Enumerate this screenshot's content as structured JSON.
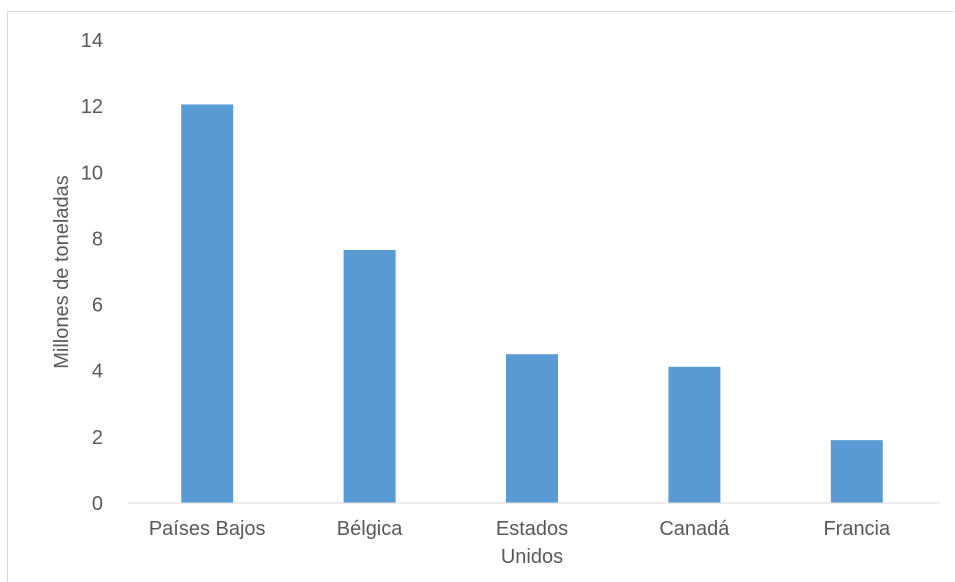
{
  "chart_data": {
    "type": "bar",
    "title": "",
    "xlabel": "",
    "ylabel": "Millones de toneladas",
    "categories": [
      [
        "Países Bajos"
      ],
      [
        "Bélgica"
      ],
      [
        "Estados",
        "Unidos"
      ],
      [
        "Canadá"
      ],
      [
        "Francia"
      ]
    ],
    "values": [
      12.05,
      7.65,
      4.5,
      4.12,
      1.9
    ],
    "ylim": [
      0,
      14
    ],
    "yticks": [
      0,
      2,
      4,
      6,
      8,
      10,
      12,
      14
    ],
    "bar_color": "#5b9bd5",
    "axis_color": "#d9d9d9",
    "text_color": "#595959",
    "grid": false,
    "legend": "none"
  }
}
